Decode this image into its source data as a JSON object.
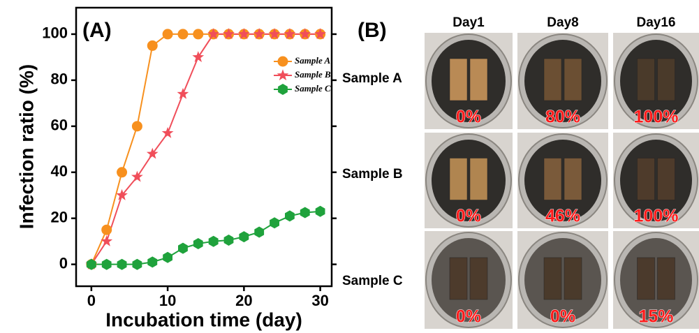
{
  "chart_data": {
    "type": "line",
    "label": "(A)",
    "x_label": "Incubation time (day)",
    "y_label": "Infection ratio (%)",
    "x": [
      0,
      2,
      4,
      6,
      8,
      10,
      12,
      14,
      16,
      18,
      20,
      22,
      24,
      26,
      28,
      30
    ],
    "series": [
      {
        "name": "Sample A",
        "color": "#f7901e",
        "marker": "circle",
        "values": [
          0,
          15,
          40,
          60,
          95,
          100,
          100,
          100,
          100,
          100,
          100,
          100,
          100,
          100,
          100,
          100
        ]
      },
      {
        "name": "Sample B",
        "color": "#f04e5a",
        "marker": "star",
        "values": [
          0,
          10,
          30,
          38,
          48,
          57,
          74,
          90,
          100,
          100,
          100,
          100,
          100,
          100,
          100,
          100
        ]
      },
      {
        "name": "Sample C",
        "color": "#1fa23c",
        "marker": "hexagon",
        "values": [
          0,
          0,
          0,
          0,
          1,
          3,
          7,
          9,
          10,
          10.5,
          12,
          14,
          18,
          21,
          22.5,
          23
        ]
      }
    ],
    "xlim": [
      -2,
      31.5
    ],
    "ylim": [
      -9.5,
      111.5
    ],
    "xticks": [
      0,
      10,
      20,
      30
    ],
    "yticks": [
      0,
      20,
      40,
      60,
      80,
      100
    ],
    "legend": "upper right"
  },
  "photos": {
    "label": "(B)",
    "columns": [
      "Day1",
      "Day8",
      "Day16"
    ],
    "rows": [
      {
        "label": "Sample A",
        "percentages": [
          "0%",
          "80%",
          "100%"
        ]
      },
      {
        "label": "Sample B",
        "percentages": [
          "0%",
          "46%",
          "100%"
        ]
      },
      {
        "label": "Sample C",
        "percentages": [
          "0%",
          "0%",
          "15%"
        ]
      }
    ]
  }
}
